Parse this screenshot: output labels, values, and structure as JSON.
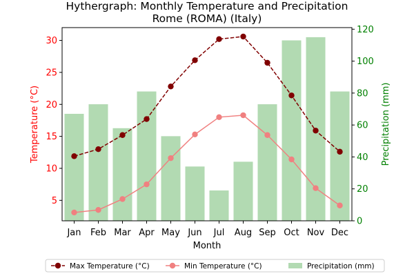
{
  "chart_data": {
    "type": "bar+line",
    "title": "Hythergraph: Monthly Temperature and Precipitation",
    "subtitle": "Rome (ROMA) (Italy)",
    "xlabel": "Month",
    "ylabel_left": "Temperature (°C)",
    "ylabel_right": "Precipitation (mm)",
    "categories": [
      "Jan",
      "Feb",
      "Mar",
      "Apr",
      "May",
      "Jun",
      "Jul",
      "Aug",
      "Sep",
      "Oct",
      "Nov",
      "Dec"
    ],
    "ylim_left": [
      1.8,
      32.0
    ],
    "yticks_left": [
      5,
      10,
      15,
      20,
      25,
      30
    ],
    "ylim_right": [
      0,
      121
    ],
    "yticks_right": [
      0,
      20,
      40,
      60,
      80,
      100,
      120
    ],
    "grid": false,
    "legend_position": "bottom",
    "series": [
      {
        "name": "Max Temperature (°C)",
        "type": "line",
        "axis": "left",
        "color": "#800000",
        "dash": "dashed",
        "marker": "circle",
        "values": [
          11.9,
          13.0,
          15.2,
          17.7,
          22.8,
          26.9,
          30.2,
          30.6,
          26.5,
          21.4,
          15.9,
          12.6
        ]
      },
      {
        "name": "Min Temperature (°C)",
        "type": "line",
        "axis": "left",
        "color": "#f08080",
        "dash": "solid",
        "marker": "circle",
        "values": [
          3.1,
          3.5,
          5.2,
          7.5,
          11.6,
          15.3,
          18.0,
          18.3,
          15.2,
          11.4,
          6.9,
          4.2
        ]
      },
      {
        "name": "Precipitation (mm)",
        "type": "bar",
        "axis": "right",
        "color": "#b2dab2",
        "values": [
          67,
          73,
          58,
          81,
          53,
          34,
          19,
          37,
          73,
          113,
          115,
          81
        ]
      }
    ]
  }
}
